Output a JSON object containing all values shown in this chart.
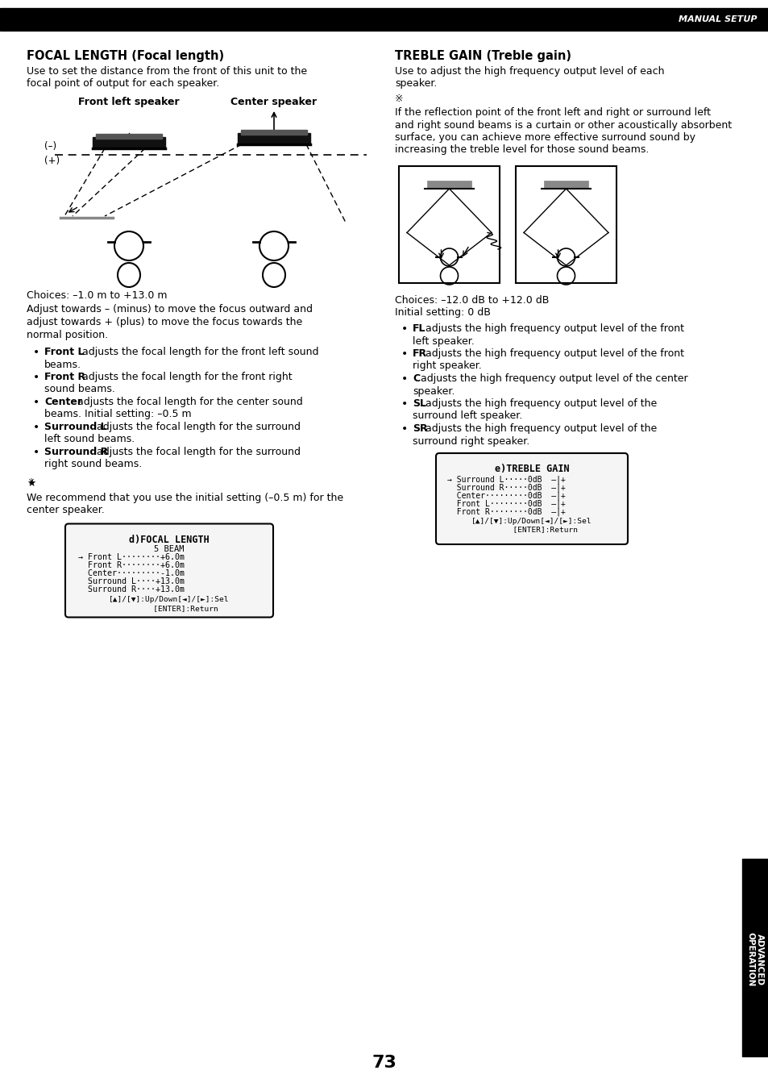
{
  "bg_color": "#ffffff",
  "header_bar_color": "#000000",
  "header_text": "MANUAL SETUP",
  "header_text_color": "#ffffff",
  "page_number": "73",
  "sidebar_text": "ADVANCED\nOPERATION",
  "sidebar_bg": "#000000",
  "sidebar_text_color": "#ffffff",
  "left_title": "FOCAL LENGTH (Focal length)",
  "left_body": [
    "Use to set the distance from the front of this unit to the",
    "focal point of output for each speaker."
  ],
  "left_diagram_label1": "Front left speaker",
  "left_diagram_label2": "Center speaker",
  "left_diagram_minus": "(–)",
  "left_diagram_plus": "(+)",
  "choices_left": "Choices: –1.0 m to +13.0 m",
  "adjust_text": [
    "Adjust towards – (minus) to move the focus outward and",
    "adjust towards + (plus) to move the focus towards the",
    "normal position."
  ],
  "bullets_left": [
    [
      "Front L",
      " adjusts the focal length for the front left sound\nbeams."
    ],
    [
      "Front R",
      " adjusts the focal length for the front right\nsound beams."
    ],
    [
      "Center",
      " adjusts the focal length for the center sound\nbeams. Initial setting: –0.5 m"
    ],
    [
      "Surround L",
      " adjusts the focal length for the surround\nleft sound beams."
    ],
    [
      "Surround R",
      " adjusts the focal length for the surround\nright sound beams."
    ]
  ],
  "note_left": [
    "We recommend that you use the initial setting (–0.5 m) for the",
    "center speaker."
  ],
  "lcd_left_title": "d)FOCAL LENGTH",
  "lcd_left_line2": "5 BEAM",
  "lcd_left_lines": [
    "→ Front L········+6.0m",
    "  Front R········+6.0m",
    "  Center·········-1.0m",
    "  Surround L····+13.0m",
    "  Surround R····+13.0m"
  ],
  "lcd_left_bottom": "[▲]/[▼]:Up/Down[◄]/[►]:Sel\n       [ENTER]:Return",
  "right_title": "TREBLE GAIN (Treble gain)",
  "right_body": [
    "Use to adjust the high frequency output level of each",
    "speaker."
  ],
  "note_right_body": [
    "If the reflection point of the front left and right or surround left",
    "and right sound beams is a curtain or other acoustically absorbent",
    "surface, you can achieve more effective surround sound by",
    "increasing the treble level for those sound beams."
  ],
  "choices_right": "Choices: –12.0 dB to +12.0 dB",
  "initial_right": "Initial setting: 0 dB",
  "bullets_right": [
    [
      "FL",
      " adjusts the high frequency output level of the front\nleft speaker."
    ],
    [
      "FR",
      " adjusts the high frequency output level of the front\nright speaker."
    ],
    [
      "C",
      " adjusts the high frequency output level of the center\nspeaker."
    ],
    [
      "SL",
      " adjusts the high frequency output level of the\nsurround left speaker."
    ],
    [
      "SR",
      " adjusts the high frequency output level of the\nsurround right speaker."
    ]
  ],
  "lcd_right_title": "e)TREBLE GAIN",
  "lcd_right_lines": [
    "→ Surround L·····0dB  —|+",
    "  Surround R·····0dB  —|+",
    "  Center·········0dB  —|+",
    "  Front L········0dB  —|+",
    "  Front R········0dB  —|+"
  ],
  "lcd_right_bottom": "[▲]/[▼]:Up/Down[◄]/[►]:Sel\n      [ENTER]:Return"
}
